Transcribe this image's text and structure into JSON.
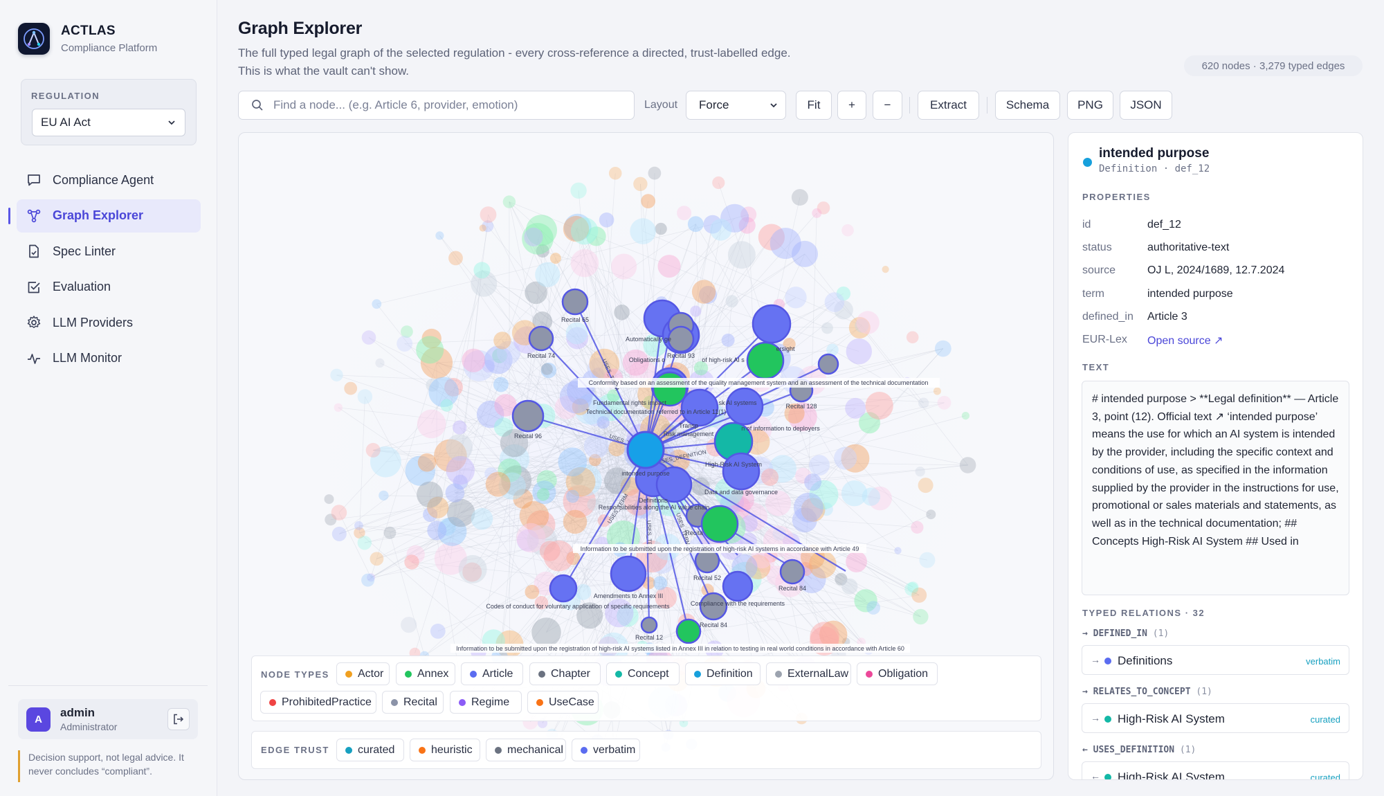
{
  "brand": {
    "name": "ACTLAS",
    "subtitle": "Compliance Platform"
  },
  "regulation": {
    "label": "REGULATION",
    "selected": "EU AI Act"
  },
  "nav": [
    {
      "label": "Compliance Agent",
      "icon": "chat-icon"
    },
    {
      "label": "Graph Explorer",
      "icon": "graph-icon",
      "active": true
    },
    {
      "label": "Spec Linter",
      "icon": "file-check-icon"
    },
    {
      "label": "Evaluation",
      "icon": "checkbox-icon"
    },
    {
      "label": "LLM Providers",
      "icon": "gear-icon"
    },
    {
      "label": "LLM Monitor",
      "icon": "pulse-icon"
    }
  ],
  "user": {
    "initial": "A",
    "name": "admin",
    "role": "Administrator"
  },
  "disclaimer": "Decision support, not legal advice. It never concludes “compliant”.",
  "header": {
    "title": "Graph Explorer",
    "description": "The full typed legal graph of the selected regulation - every cross-reference a directed, trust-labelled edge. This is what the vault can't show.",
    "stats": "620 nodes · 3,279 typed edges"
  },
  "toolbar": {
    "search_placeholder": "Find a node... (e.g. Article 6, provider, emotion)",
    "layout_label": "Layout",
    "layout_value": "Force",
    "fit": "Fit",
    "zoom_in": "+",
    "zoom_out": "−",
    "extract": "Extract",
    "schema": "Schema",
    "png": "PNG",
    "json": "JSON"
  },
  "graph": {
    "labels": {
      "recital65": "Recital 65",
      "recital74": "Recital 74",
      "recital93": "Recital 93",
      "recital96": "Recital 96",
      "recital128": "Recital 128",
      "recital52": "Recital 52",
      "recital84a": "Recital 84",
      "recital84b": "Recital 84",
      "recital12": "Recital 12",
      "recitalTrunc": "Recita",
      "autoGen": "Automatically ge",
      "obligations": "Obligations o",
      "highRiskAi": "of high-risk AI s",
      "oversight": "ersight",
      "conformity": "Conformity based on an assessment of the quality management system and an assessment of the technical documentation",
      "fundamental": "Fundamental rights impact",
      "techDoc": "Technical documentation referred to in Article 11(1)",
      "skAi": "sk AI systems",
      "transp": "Transp",
      "infoDeployers": "n of information to deployers",
      "riskMgmt": "Risk management",
      "intendedPurpose": "intended purpose",
      "highRiskSystem": "High-Risk AI System",
      "definitions": "Definitions",
      "dataGov": "Data and data governance",
      "respons": "Responsibilities along the AI value chain",
      "infoSubmitted": "Information to be submitted upon the registration of high-risk AI systems in accordance with Article 49",
      "amendments": "Amendments to Annex III",
      "codes": "Codes of conduct for voluntary application of specific requirements",
      "compliance": "Compliance with the requirements",
      "infoAnnexVIII": "Information to be submitted upon the registration of high-risk AI systems listed in Annex III in relation to testing in real world conditions in accordance with Article 60",
      "usesTerm": "USES_TERM",
      "usesDefinition": "USES_DEFINITION"
    }
  },
  "legend": {
    "node_types_title": "NODE TYPES",
    "node_types": [
      {
        "label": "Actor",
        "color": "#f0a020"
      },
      {
        "label": "Annex",
        "color": "#22c55e"
      },
      {
        "label": "Article",
        "color": "#5b6cf0"
      },
      {
        "label": "Chapter",
        "color": "#6b7280"
      },
      {
        "label": "Concept",
        "color": "#14b8a6"
      },
      {
        "label": "Definition",
        "color": "#17a0dc"
      },
      {
        "label": "ExternalLaw",
        "color": "#9ca3af"
      },
      {
        "label": "Obligation",
        "color": "#ec4899"
      },
      {
        "label": "ProhibitedPractice",
        "color": "#ef4444"
      },
      {
        "label": "Recital",
        "color": "#8b93a8"
      },
      {
        "label": "Regime",
        "color": "#8b5cf6"
      },
      {
        "label": "UseCase",
        "color": "#f97316"
      }
    ],
    "edge_trust_title": "EDGE TRUST",
    "edge_trust": [
      {
        "label": "curated",
        "color": "#17a0c0"
      },
      {
        "label": "heuristic",
        "color": "#f97316"
      },
      {
        "label": "mechanical",
        "color": "#6b7280"
      },
      {
        "label": "verbatim",
        "color": "#5b6cf0"
      }
    ]
  },
  "details": {
    "title": "intended purpose",
    "subtitle": "Definition · def_12",
    "properties_label": "PROPERTIES",
    "properties": [
      {
        "key": "id",
        "value": "def_12"
      },
      {
        "key": "status",
        "value": "authoritative-text"
      },
      {
        "key": "source",
        "value": "OJ L, 2024/1689, 12.7.2024"
      },
      {
        "key": "term",
        "value": "intended purpose"
      },
      {
        "key": "defined_in",
        "value": "Article 3"
      },
      {
        "key": "EUR-Lex",
        "value": "Open source ↗"
      }
    ],
    "text_label": "TEXT",
    "text": "# intended purpose > **Legal definition** — Article 3, point (12). Official text ↗ ‘intended purpose’ means the use for which an AI system is intended by the provider, including the specific context and conditions of use, as specified in the information supplied by the provider in the instructions for use, promotional or sales materials and statements, as well as in the technical documentation; ## Concepts High-Risk AI System ## Used in",
    "relations_label": "TYPED RELATIONS · 32",
    "relations": [
      {
        "header": "→ DEFINED_IN",
        "count": "(1)",
        "arrow": "→",
        "name": "Definitions",
        "color": "#5b6cf0",
        "trust": "verbatim"
      },
      {
        "header": "→ RELATES_TO_CONCEPT",
        "count": "(1)",
        "arrow": "→",
        "name": "High-Risk AI System",
        "color": "#14b8a6",
        "trust": "curated"
      },
      {
        "header": "← USES_DEFINITION",
        "count": "(1)",
        "arrow": "←",
        "name": "High-Risk AI System",
        "color": "#14b8a6",
        "trust": "curated"
      }
    ]
  }
}
